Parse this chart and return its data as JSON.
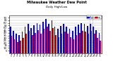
{
  "title": "Milwaukee Weather Dew Point",
  "subtitle": "Daily High/Low",
  "legend_high": "High",
  "legend_low": "Low",
  "color_high": "#0000ee",
  "color_low": "#dd0000",
  "background": "#ffffff",
  "yticks": [
    5,
    10,
    15,
    20,
    25,
    30,
    35,
    40,
    45,
    50,
    55,
    60,
    65,
    70
  ],
  "ylim": [
    0,
    75
  ],
  "n_groups": 31,
  "high_values": [
    52,
    44,
    38,
    36,
    42,
    52,
    58,
    50,
    55,
    60,
    56,
    62,
    68,
    58,
    65,
    52,
    48,
    54,
    58,
    52,
    48,
    44,
    52,
    56,
    60,
    58,
    54,
    58,
    52,
    46,
    40
  ],
  "low_values": [
    35,
    28,
    22,
    24,
    30,
    38,
    44,
    36,
    40,
    46,
    38,
    48,
    52,
    44,
    50,
    36,
    32,
    38,
    42,
    38,
    32,
    28,
    36,
    40,
    44,
    42,
    38,
    44,
    38,
    30,
    24
  ],
  "x_labels": [
    "1",
    "2",
    "3",
    "4",
    "5",
    "6",
    "7",
    "8",
    "9",
    "10",
    "11",
    "12",
    "13",
    "14",
    "15",
    "16",
    "17",
    "18",
    "19",
    "20",
    "21",
    "22",
    "23",
    "24",
    "25",
    "26",
    "27",
    "28",
    "29",
    "30",
    "31"
  ],
  "dotted_lines": [
    26.5,
    27.5
  ]
}
